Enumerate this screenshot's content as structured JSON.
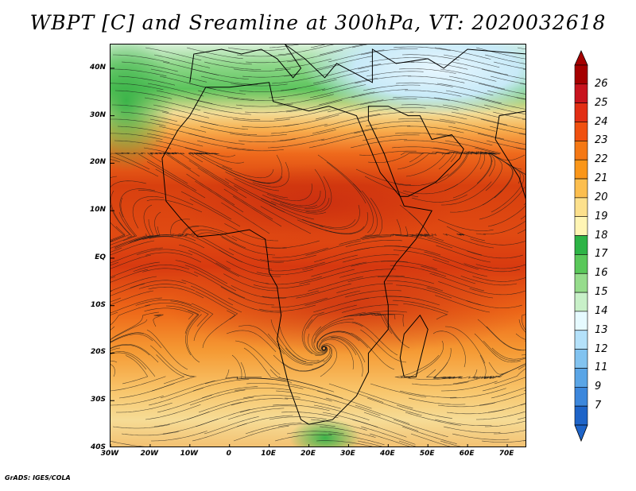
{
  "title": "WBPT [C] and Sreamline at 300hPa, VT: 2020032618",
  "credit": "GrADS: IGES/COLA",
  "map": {
    "lat_range": [
      -40,
      45
    ],
    "lon_range": [
      -30,
      75
    ],
    "lat_ticks": [
      "40N",
      "30N",
      "20N",
      "10N",
      "EQ",
      "10S",
      "20S",
      "30S",
      "40S"
    ],
    "lat_tick_values": [
      40,
      30,
      20,
      10,
      0,
      -10,
      -20,
      -30,
      -40
    ],
    "lon_ticks": [
      "30W",
      "20W",
      "10W",
      "0",
      "10E",
      "20E",
      "30E",
      "40E",
      "50E",
      "60E",
      "70E"
    ],
    "lon_tick_values": [
      -30,
      -20,
      -10,
      0,
      10,
      20,
      30,
      40,
      50,
      60,
      70
    ]
  },
  "colorbar": {
    "labels": [
      "26",
      "25",
      "24",
      "23",
      "22",
      "21",
      "20",
      "19",
      "18",
      "17",
      "16",
      "15",
      "14",
      "13",
      "12",
      "11",
      "9",
      "7"
    ],
    "colors": [
      "#a50000",
      "#c8141e",
      "#e22e14",
      "#f0500f",
      "#f57814",
      "#fa9619",
      "#fcbe4e",
      "#fce08c",
      "#fff5b4",
      "#2db446",
      "#5ac85a",
      "#96dc8c",
      "#c8f0c8",
      "#e6faff",
      "#b4e1fa",
      "#82c3f0",
      "#5aa5e6",
      "#3c87dc",
      "#1e64c8"
    ]
  }
}
